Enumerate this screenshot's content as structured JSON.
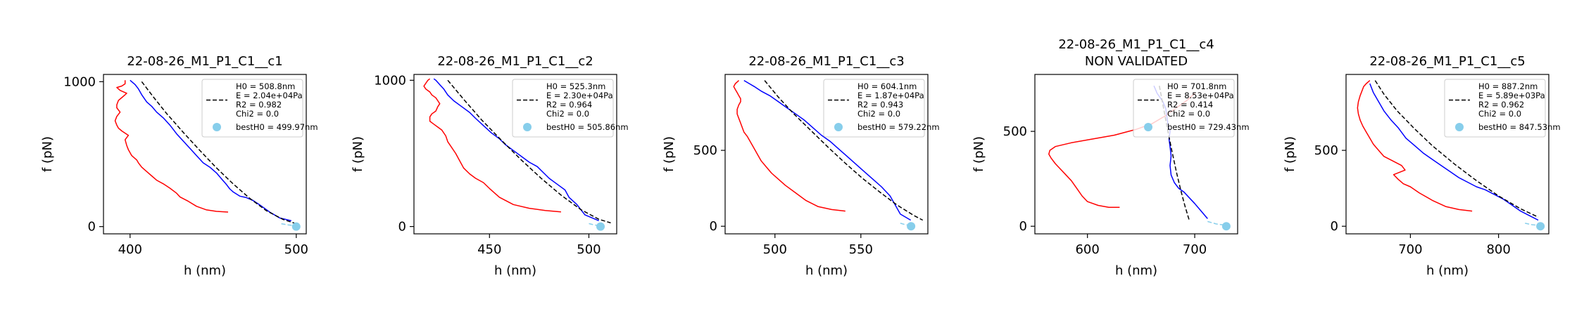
{
  "chart_data": [
    {
      "type": "line",
      "title": "22-08-26_M1_P1_C1__c1",
      "subtitle": "",
      "xlabel": "h (nm)",
      "ylabel": "f (pN)",
      "xlim": [
        384,
        506
      ],
      "ylim": [
        -50,
        1050
      ],
      "xticks": [
        400,
        500
      ],
      "yticks": [
        0,
        1000
      ],
      "grid": false,
      "legend_position": "top-right",
      "legend": [
        "H0 = 508.8nm\nE = 2.04e+04Pa\nR2 = 0.982\nChi2 = 0.0",
        "bestH0 = 499.97nm"
      ],
      "series": [
        {
          "role": "red",
          "x": [
            459,
            452,
            446,
            440,
            435,
            430,
            428,
            424,
            420,
            416,
            413,
            410,
            407,
            405,
            404,
            401,
            399,
            398,
            397,
            399,
            395,
            393,
            392,
            391,
            392,
            394,
            392,
            392,
            393,
            395,
            397,
            398,
            396,
            394,
            393,
            392,
            395,
            397,
            397,
            397
          ],
          "y": [
            100,
            105,
            115,
            140,
            175,
            205,
            230,
            265,
            295,
            320,
            350,
            380,
            410,
            440,
            460,
            490,
            530,
            560,
            600,
            630,
            660,
            680,
            700,
            730,
            760,
            790,
            820,
            840,
            870,
            890,
            910,
            920,
            930,
            940,
            950,
            960,
            970,
            985,
            1000,
            1010
          ]
        },
        {
          "role": "blue",
          "x": [
            497,
            490,
            484,
            478,
            474,
            470,
            466,
            462,
            460,
            458,
            455,
            452,
            448,
            444,
            440,
            436,
            432,
            428,
            424,
            420,
            416,
            413,
            410,
            407,
            405,
            403,
            401,
            400
          ],
          "y": [
            40,
            60,
            100,
            150,
            180,
            200,
            210,
            240,
            260,
            290,
            330,
            370,
            410,
            440,
            490,
            540,
            590,
            640,
            700,
            750,
            790,
            830,
            860,
            910,
            950,
            980,
            1000,
            1010
          ]
        },
        {
          "role": "fit",
          "x": [
            407,
            414,
            422,
            432,
            442,
            452,
            462,
            472,
            482,
            492,
            500
          ],
          "y": [
            1000,
            895,
            780,
            650,
            525,
            405,
            295,
            195,
            110,
            50,
            20
          ]
        },
        {
          "role": "tail",
          "x": [
            491,
            495,
            500
          ],
          "y": [
            20,
            12,
            5
          ]
        }
      ],
      "best_point": {
        "x": 499.97,
        "y": 0
      }
    },
    {
      "type": "line",
      "title": "22-08-26_M1_P1_C1__c2",
      "subtitle": "",
      "xlabel": "h (nm)",
      "ylabel": "f (pN)",
      "xlim": [
        412,
        514
      ],
      "ylim": [
        -50,
        1040
      ],
      "xticks": [
        450,
        500
      ],
      "yticks": [
        0,
        1000
      ],
      "grid": false,
      "legend_position": "top-right",
      "legend": [
        "H0 = 525.3nm\nE = 2.30e+04Pa\nR2 = 0.964\nChi2 = 0.0",
        "bestH0 = 505.86nm"
      ],
      "series": [
        {
          "role": "red",
          "x": [
            486,
            478,
            470,
            462,
            455,
            450,
            447,
            443,
            440,
            437,
            435,
            433,
            431,
            429,
            428,
            426,
            424,
            422,
            420,
            420,
            421,
            423,
            424,
            425,
            424,
            423,
            421,
            420,
            418,
            417,
            418,
            419,
            420
          ],
          "y": [
            100,
            110,
            125,
            150,
            200,
            260,
            300,
            330,
            360,
            400,
            450,
            500,
            540,
            580,
            620,
            660,
            680,
            700,
            720,
            750,
            770,
            790,
            820,
            840,
            860,
            880,
            900,
            920,
            940,
            960,
            980,
            1000,
            1010
          ]
        },
        {
          "role": "blue",
          "x": [
            505,
            498,
            494,
            490,
            488,
            484,
            480,
            477,
            474,
            470,
            466,
            462,
            458,
            455,
            451,
            447,
            443,
            440,
            436,
            432,
            429,
            427,
            425,
            423,
            422
          ],
          "y": [
            40,
            80,
            150,
            200,
            250,
            290,
            330,
            370,
            410,
            440,
            480,
            520,
            560,
            600,
            640,
            690,
            740,
            780,
            820,
            860,
            900,
            940,
            970,
            1000,
            1010
          ]
        },
        {
          "role": "fit",
          "x": [
            429,
            437,
            446,
            456,
            466,
            476,
            486,
            496,
            505,
            511
          ],
          "y": [
            1000,
            870,
            730,
            590,
            455,
            330,
            215,
            115,
            50,
            25
          ]
        },
        {
          "role": "tail",
          "x": [
            500,
            503,
            505.86
          ],
          "y": [
            20,
            10,
            5
          ]
        }
      ],
      "best_point": {
        "x": 505.86,
        "y": 0
      }
    },
    {
      "type": "line",
      "title": "22-08-26_M1_P1_C1__c3",
      "subtitle": "",
      "xlabel": "h (nm)",
      "ylabel": "f (pN)",
      "xlim": [
        471,
        589
      ],
      "ylim": [
        -50,
        1000
      ],
      "xticks": [
        500,
        550
      ],
      "yticks": [
        0,
        500
      ],
      "grid": false,
      "legend_position": "top-right",
      "legend": [
        "H0 = 604.1nm\nE = 1.87e+04Pa\nR2 = 0.943\nChi2 = 0.0",
        "bestH0 = 579.22nm"
      ],
      "series": [
        {
          "role": "red",
          "x": [
            541,
            533,
            525,
            518,
            512,
            506,
            502,
            498,
            495,
            492,
            490,
            488,
            486,
            484,
            482,
            481,
            480,
            479,
            478,
            478,
            479,
            480,
            480,
            479,
            478,
            477,
            476,
            477,
            478,
            479
          ],
          "y": [
            100,
            110,
            130,
            170,
            220,
            270,
            310,
            350,
            390,
            430,
            470,
            510,
            550,
            590,
            620,
            650,
            680,
            710,
            740,
            770,
            800,
            820,
            840,
            860,
            880,
            900,
            920,
            940,
            950,
            960
          ]
        },
        {
          "role": "blue",
          "x": [
            579,
            573,
            570,
            567,
            562,
            557,
            552,
            547,
            542,
            537,
            532,
            527,
            522,
            517,
            512,
            507,
            502,
            497,
            492,
            488,
            485,
            482
          ],
          "y": [
            40,
            80,
            140,
            200,
            260,
            310,
            360,
            410,
            460,
            510,
            560,
            600,
            650,
            700,
            740,
            780,
            820,
            860,
            890,
            920,
            940,
            960
          ]
        },
        {
          "role": "fit",
          "x": [
            494,
            502,
            511,
            521,
            531,
            541,
            551,
            561,
            571,
            581,
            586
          ],
          "y": [
            960,
            850,
            740,
            630,
            520,
            415,
            315,
            225,
            140,
            70,
            40
          ]
        },
        {
          "role": "tail",
          "x": [
            573,
            576,
            579.22
          ],
          "y": [
            20,
            10,
            5
          ]
        }
      ],
      "best_point": {
        "x": 579.22,
        "y": 0
      }
    },
    {
      "type": "line",
      "title": "22-08-26_M1_P1_C1__c4",
      "subtitle": "NON VALIDATED",
      "xlabel": "h (nm)",
      "ylabel": "f (pN)",
      "xlim": [
        551,
        740
      ],
      "ylim": [
        -40,
        800
      ],
      "xticks": [
        600,
        700
      ],
      "yticks": [
        0,
        500
      ],
      "grid": false,
      "legend_position": "top-right",
      "legend": [
        "H0 = 701.8nm\nE = 8.53e+04Pa\nR2 = 0.414\nChi2 = 0.0",
        "bestH0 = 729.43nm"
      ],
      "series": [
        {
          "role": "red",
          "x": [
            630,
            620,
            610,
            600,
            595,
            590,
            585,
            580,
            575,
            570,
            566,
            564,
            565,
            570,
            585,
            605,
            625,
            645,
            660,
            672,
            682,
            692,
            700
          ],
          "y": [
            100,
            100,
            110,
            130,
            160,
            200,
            240,
            270,
            300,
            330,
            360,
            380,
            400,
            420,
            440,
            460,
            480,
            510,
            540,
            580,
            620,
            660,
            700
          ]
        },
        {
          "role": "blue",
          "x": [
            712,
            706,
            700,
            695,
            690,
            685,
            681,
            678,
            677,
            678,
            677,
            676,
            677,
            675,
            674,
            673,
            670,
            665,
            662
          ],
          "y": [
            40,
            80,
            120,
            150,
            180,
            200,
            230,
            270,
            320,
            370,
            420,
            460,
            500,
            540,
            580,
            620,
            660,
            700,
            740
          ]
        },
        {
          "role": "fit",
          "x": [
            667,
            671,
            675,
            679,
            683,
            687,
            691,
            695
          ],
          "y": [
            740,
            620,
            500,
            390,
            285,
            190,
            105,
            30
          ]
        },
        {
          "role": "tail",
          "x": [
            712,
            720,
            729.43
          ],
          "y": [
            25,
            12,
            5
          ]
        }
      ],
      "best_point": {
        "x": 729.43,
        "y": 0
      }
    },
    {
      "type": "line",
      "title": "22-08-26_M1_P1_C1__c5",
      "subtitle": "",
      "xlabel": "h (nm)",
      "ylabel": "f (pN)",
      "xlim": [
        627,
        857
      ],
      "ylim": [
        -50,
        1000
      ],
      "xticks": [
        700,
        800
      ],
      "yticks": [
        0,
        500
      ],
      "grid": false,
      "legend_position": "top-right",
      "legend": [
        "H0 = 887.2nm\nE = 5.89e+03Pa\nR2 = 0.962\nChi2 = 0.0",
        "bestH0 = 847.53nm"
      ],
      "series": [
        {
          "role": "red",
          "x": [
            770,
            755,
            740,
            725,
            710,
            700,
            692,
            686,
            681,
            694,
            690,
            680,
            670,
            664,
            658,
            654,
            650,
            646,
            643,
            641,
            640,
            641,
            643,
            645,
            647,
            650,
            652,
            654
          ],
          "y": [
            100,
            110,
            130,
            170,
            220,
            260,
            280,
            310,
            340,
            370,
            400,
            430,
            460,
            500,
            540,
            580,
            620,
            660,
            700,
            740,
            780,
            820,
            860,
            890,
            920,
            940,
            950,
            960
          ]
        },
        {
          "role": "blue",
          "x": [
            845,
            835,
            825,
            815,
            805,
            795,
            785,
            775,
            765,
            755,
            745,
            735,
            725,
            715,
            705,
            695,
            686,
            678,
            670,
            664,
            658,
            654
          ],
          "y": [
            40,
            70,
            100,
            140,
            180,
            210,
            240,
            260,
            290,
            320,
            360,
            400,
            440,
            480,
            530,
            580,
            650,
            700,
            760,
            820,
            880,
            940
          ]
        },
        {
          "role": "fit",
          "x": [
            660,
            670,
            685,
            705,
            725,
            750,
            775,
            800,
            825,
            845
          ],
          "y": [
            960,
            870,
            760,
            640,
            530,
            410,
            300,
            200,
            115,
            60
          ]
        },
        {
          "role": "tail",
          "x": [
            830,
            838,
            847.53
          ],
          "y": [
            20,
            10,
            5
          ]
        }
      ],
      "best_point": {
        "x": 847.53,
        "y": 0
      }
    }
  ],
  "colors": {
    "red_curve": "#ff0000",
    "blue_curve": "#0000ff",
    "fit_line": "#000000",
    "best_point": "#87ceeb",
    "tail": "#87ceeb"
  }
}
